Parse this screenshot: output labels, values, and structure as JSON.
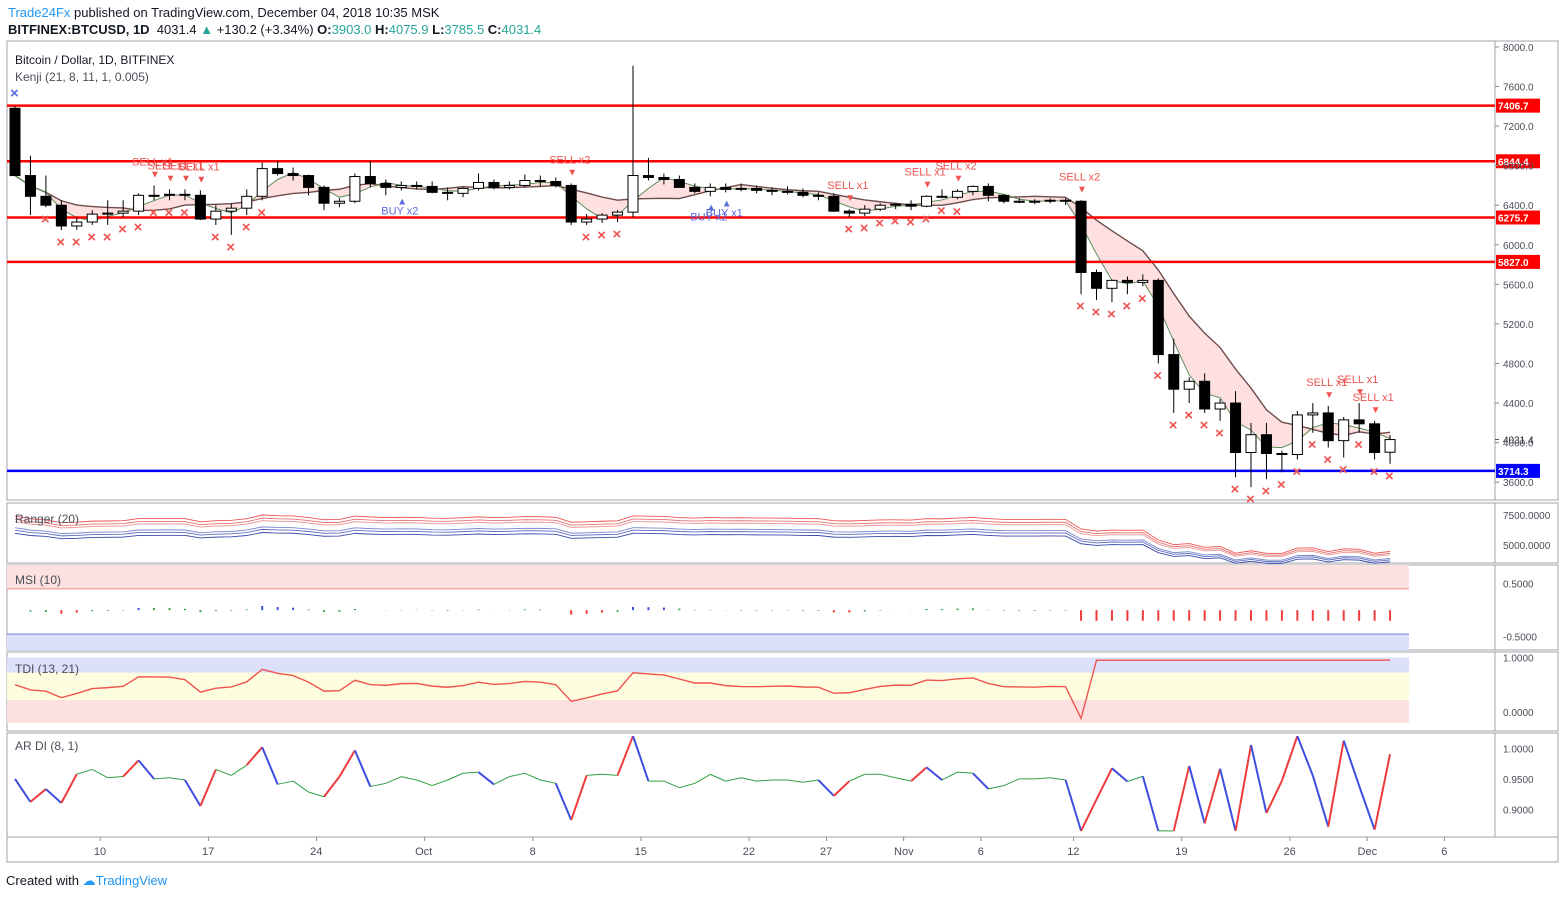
{
  "header": {
    "publisher": "Trade24Fx",
    "published_text": "published on TradingView.com, December 04, 2018 10:35 MSK",
    "symbol": "BITFINEX:BTCUSD, 1D",
    "last": "4031.4",
    "change": "+130.2 (+3.34%)",
    "o_label": "O:",
    "o": "3903.0",
    "h_label": "H:",
    "h": "4075.9",
    "l_label": "L:",
    "l": "3785.5",
    "c_label": "C:",
    "c": "4031.4"
  },
  "footer": {
    "created_with": "Created with",
    "brand": "TradingView"
  },
  "colors": {
    "bull": "#ffffff",
    "bear": "#000000",
    "resistance": "#ff0000",
    "support": "#0000ff",
    "sell": "#ef5350",
    "buy": "#5b6be0",
    "cloud": "#ffd6d6",
    "kenji": "#6d4c4c"
  },
  "chart_data": [
    {
      "type": "candlestick",
      "title": "Bitcoin / Dollar, 1D, BITFINEX",
      "indicator_label": "Kenji (21, 8, 11, 1, 0.005)",
      "y_axis": [
        3600,
        4000,
        4400,
        4800,
        5200,
        5600,
        6000,
        6400,
        6800,
        7200,
        7600,
        8000
      ],
      "y_axis_labels": [
        "3600.0",
        "4000.0",
        "4400.0",
        "4800.0",
        "5200.0",
        "5600.0",
        "6000.0",
        "6400.0",
        "6800.0",
        "7200.0",
        "7600.0",
        "8000.0"
      ],
      "ylim": [
        3420,
        8060
      ],
      "x_ticks": [
        {
          "i": 5,
          "label": "10"
        },
        {
          "i": 12,
          "label": "17"
        },
        {
          "i": 19,
          "label": "24"
        },
        {
          "i": 26,
          "label": "Oct"
        },
        {
          "i": 33,
          "label": "8"
        },
        {
          "i": 40,
          "label": "15"
        },
        {
          "i": 47,
          "label": "22"
        },
        {
          "i": 52,
          "label": "27"
        },
        {
          "i": 57,
          "label": "Nov"
        },
        {
          "i": 62,
          "label": "6"
        },
        {
          "i": 68,
          "label": "12"
        },
        {
          "i": 75,
          "label": "19"
        },
        {
          "i": 82,
          "label": "26"
        },
        {
          "i": 87,
          "label": "Dec"
        },
        {
          "i": 92,
          "label": "6"
        }
      ],
      "horizontal_levels": [
        {
          "value": 7406.7,
          "label": "7406.7",
          "color": "#ff0000"
        },
        {
          "value": 6844.4,
          "label": "6844.4",
          "color": "#ff0000"
        },
        {
          "value": 6275.7,
          "label": "6275.7",
          "color": "#ff0000"
        },
        {
          "value": 5827.0,
          "label": "5827.0",
          "color": "#ff0000"
        },
        {
          "value": 3714.3,
          "label": "3714.3",
          "color": "#0000ff"
        }
      ],
      "last_price": {
        "value": 4031.4,
        "label": "4031.4"
      },
      "candles": [
        [
          7380,
          7400,
          6700,
          6700
        ],
        [
          6700,
          6900,
          6300,
          6490
        ],
        [
          6490,
          6700,
          6380,
          6400
        ],
        [
          6400,
          6450,
          6150,
          6190
        ],
        [
          6190,
          6280,
          6150,
          6230
        ],
        [
          6230,
          6350,
          6200,
          6310
        ],
        [
          6310,
          6450,
          6200,
          6320
        ],
        [
          6320,
          6450,
          6280,
          6340
        ],
        [
          6340,
          6520,
          6300,
          6500
        ],
        [
          6500,
          6600,
          6450,
          6500
        ],
        [
          6500,
          6560,
          6450,
          6510
        ],
        [
          6510,
          6560,
          6450,
          6500
        ],
        [
          6500,
          6550,
          6250,
          6260
        ],
        [
          6260,
          6400,
          6200,
          6340
        ],
        [
          6340,
          6420,
          6100,
          6370
        ],
        [
          6370,
          6560,
          6300,
          6490
        ],
        [
          6490,
          6830,
          6450,
          6770
        ],
        [
          6770,
          6850,
          6700,
          6720
        ],
        [
          6720,
          6780,
          6650,
          6700
        ],
        [
          6700,
          6710,
          6500,
          6580
        ],
        [
          6580,
          6600,
          6350,
          6420
        ],
        [
          6420,
          6470,
          6380,
          6440
        ],
        [
          6440,
          6720,
          6420,
          6690
        ],
        [
          6690,
          6850,
          6580,
          6620
        ],
        [
          6620,
          6660,
          6500,
          6580
        ],
        [
          6580,
          6640,
          6550,
          6600
        ],
        [
          6600,
          6640,
          6560,
          6590
        ],
        [
          6590,
          6640,
          6520,
          6530
        ],
        [
          6530,
          6580,
          6450,
          6520
        ],
        [
          6520,
          6580,
          6480,
          6570
        ],
        [
          6570,
          6720,
          6550,
          6630
        ],
        [
          6630,
          6660,
          6560,
          6580
        ],
        [
          6580,
          6640,
          6560,
          6600
        ],
        [
          6600,
          6710,
          6580,
          6650
        ],
        [
          6650,
          6700,
          6590,
          6640
        ],
        [
          6640,
          6680,
          6580,
          6600
        ],
        [
          6600,
          6620,
          6200,
          6230
        ],
        [
          6230,
          6310,
          6200,
          6260
        ],
        [
          6260,
          6320,
          6220,
          6300
        ],
        [
          6300,
          6350,
          6230,
          6330
        ],
        [
          6330,
          7810,
          6280,
          6700
        ],
        [
          6700,
          6880,
          6650,
          6680
        ],
        [
          6680,
          6720,
          6610,
          6660
        ],
        [
          6660,
          6700,
          6580,
          6580
        ],
        [
          6580,
          6620,
          6520,
          6540
        ],
        [
          6540,
          6620,
          6490,
          6580
        ],
        [
          6580,
          6620,
          6530,
          6560
        ],
        [
          6560,
          6620,
          6540,
          6570
        ],
        [
          6570,
          6600,
          6520,
          6550
        ],
        [
          6550,
          6580,
          6500,
          6540
        ],
        [
          6540,
          6590,
          6510,
          6530
        ],
        [
          6530,
          6570,
          6480,
          6500
        ],
        [
          6500,
          6530,
          6450,
          6490
        ],
        [
          6490,
          6520,
          6330,
          6340
        ],
        [
          6340,
          6360,
          6280,
          6320
        ],
        [
          6320,
          6400,
          6290,
          6360
        ],
        [
          6360,
          6420,
          6340,
          6400
        ],
        [
          6400,
          6420,
          6360,
          6410
        ],
        [
          6410,
          6450,
          6350,
          6390
        ],
        [
          6390,
          6500,
          6380,
          6490
        ],
        [
          6490,
          6560,
          6470,
          6480
        ],
        [
          6480,
          6560,
          6460,
          6540
        ],
        [
          6540,
          6600,
          6500,
          6590
        ],
        [
          6590,
          6620,
          6440,
          6500
        ],
        [
          6500,
          6510,
          6420,
          6440
        ],
        [
          6440,
          6470,
          6420,
          6440
        ],
        [
          6440,
          6460,
          6410,
          6440
        ],
        [
          6440,
          6470,
          6420,
          6450
        ],
        [
          6450,
          6470,
          6400,
          6440
        ],
        [
          6440,
          6450,
          5500,
          5720
        ],
        [
          5720,
          5750,
          5440,
          5560
        ],
        [
          5560,
          5650,
          5420,
          5640
        ],
        [
          5640,
          5680,
          5500,
          5620
        ],
        [
          5620,
          5700,
          5580,
          5640
        ],
        [
          5640,
          5660,
          4800,
          4890
        ],
        [
          4890,
          5050,
          4300,
          4540
        ],
        [
          4540,
          4660,
          4400,
          4620
        ],
        [
          4620,
          4700,
          4300,
          4340
        ],
        [
          4340,
          4440,
          4220,
          4400
        ],
        [
          4400,
          4520,
          3650,
          3900
        ],
        [
          3900,
          4200,
          3550,
          4080
        ],
        [
          4080,
          4200,
          3630,
          3890
        ],
        [
          3890,
          3920,
          3700,
          3880
        ],
        [
          3880,
          4320,
          3830,
          4280
        ],
        [
          4280,
          4400,
          4100,
          4300
        ],
        [
          4300,
          4370,
          3950,
          4020
        ],
        [
          4020,
          4260,
          3850,
          4230
        ],
        [
          4230,
          4400,
          4100,
          4190
        ],
        [
          4190,
          4220,
          3830,
          3900
        ],
        [
          3903,
          4076,
          3786,
          4031
        ]
      ],
      "sell_signals": [
        {
          "i": 9,
          "label": "SELL x1"
        },
        {
          "i": 10,
          "label": "SELL x1"
        },
        {
          "i": 11,
          "label": "SELL x1"
        },
        {
          "i": 12,
          "label": "SELL x1"
        },
        {
          "i": 36,
          "label": "SELL x2"
        },
        {
          "i": 54,
          "label": "SELL x1"
        },
        {
          "i": 59,
          "label": "SELL x1"
        },
        {
          "i": 61,
          "label": "SELL x2"
        },
        {
          "i": 69,
          "label": "SELL x2"
        },
        {
          "i": 85,
          "label": "SELL x1"
        },
        {
          "i": 87,
          "label": "SELL x1"
        },
        {
          "i": 88,
          "label": "SELL x1"
        }
      ],
      "buy_signals": [
        {
          "i": 25,
          "label": "BUY x2"
        },
        {
          "i": 45,
          "label": "BUY x2"
        },
        {
          "i": 46,
          "label": "BUY x1"
        }
      ]
    },
    {
      "type": "line",
      "title": "Ranger (20)",
      "y_axis_labels": [
        "7500.0000",
        "5000.0000"
      ],
      "y_axis": [
        7500,
        5000
      ],
      "ylim": [
        3500,
        8500
      ]
    },
    {
      "type": "bar",
      "title": "MSI (10)",
      "y_axis_labels": [
        "0.5000",
        "-0.5000"
      ],
      "y_axis": [
        0.5,
        -0.5
      ],
      "ylim": [
        -0.75,
        0.85
      ]
    },
    {
      "type": "line",
      "title": "TDI (13, 21)",
      "y_axis_labels": [
        "1.0000",
        "0.0000"
      ],
      "y_axis": [
        1.0,
        0.0
      ],
      "ylim": [
        -0.35,
        1.1
      ]
    },
    {
      "type": "line",
      "title": "AR DI (8, 1)",
      "y_axis_labels": [
        "1.0000",
        "0.9500",
        "0.9000"
      ],
      "y_axis": [
        1.0,
        0.95,
        0.9
      ],
      "ylim": [
        0.855,
        1.025
      ]
    }
  ]
}
